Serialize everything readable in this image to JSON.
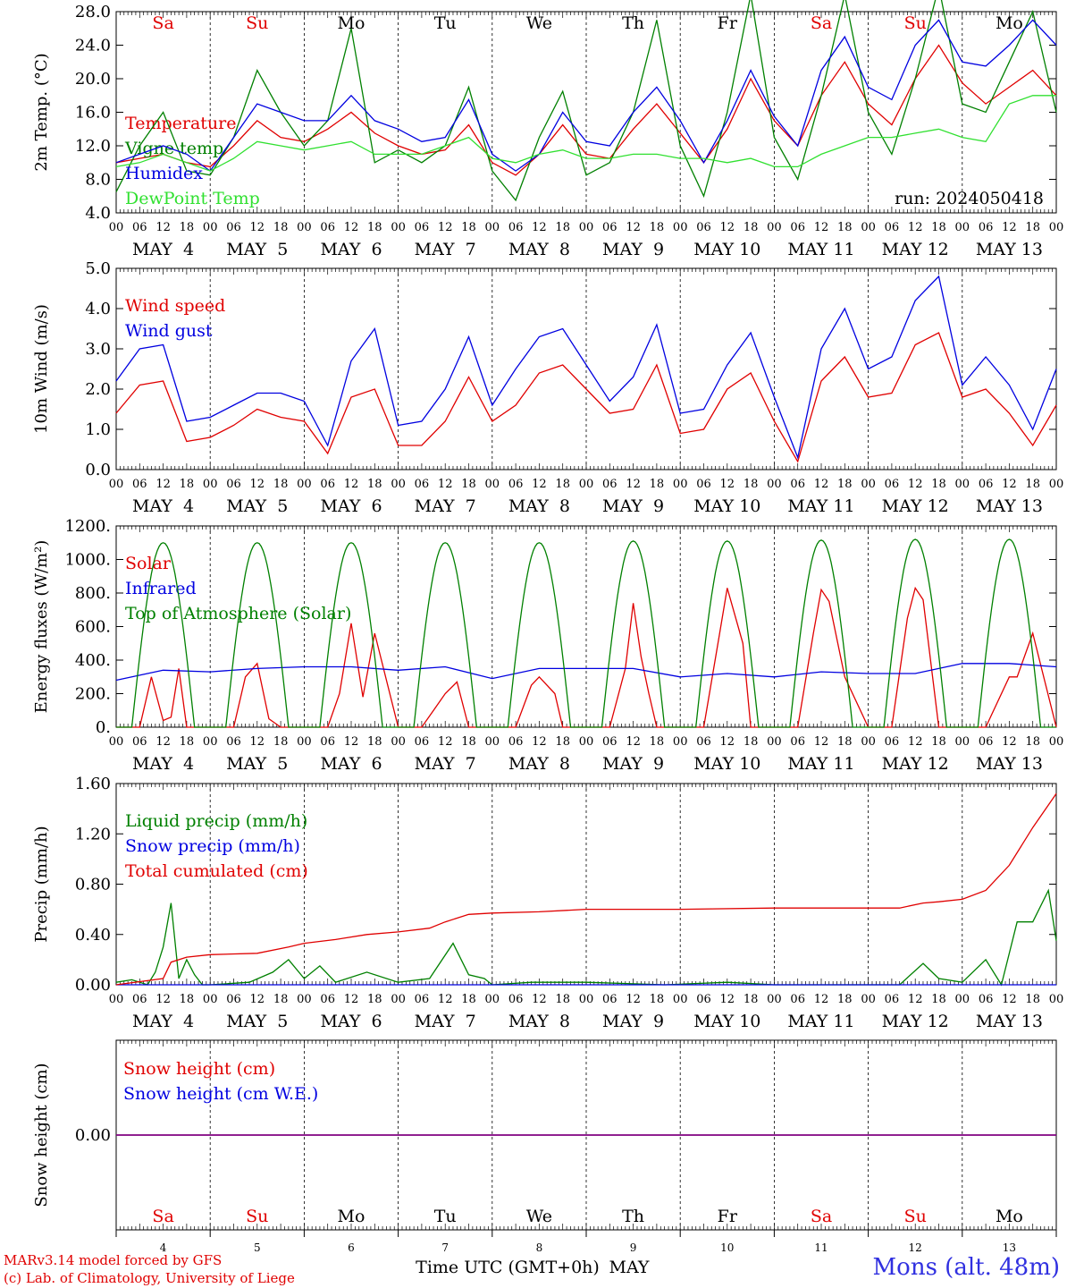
{
  "run_label": "run: 2024050418",
  "day_abbr": [
    "Sa",
    "Su",
    "Mo",
    "Tu",
    "We",
    "Th",
    "Fr",
    "Sa",
    "Su",
    "Mo"
  ],
  "day_colors": [
    "#e00000",
    "#e00000",
    "#000000",
    "#000000",
    "#000000",
    "#000000",
    "#000000",
    "#e00000",
    "#e00000",
    "#000000"
  ],
  "date_labels": [
    "MAY  4",
    "MAY  5",
    "MAY  6",
    "MAY  7",
    "MAY  8",
    "MAY  9",
    "MAY 10",
    "MAY 11",
    "MAY 12",
    "MAY 13"
  ],
  "hour_labels": [
    "00",
    "06",
    "12",
    "18"
  ],
  "bottom_day_numbers": [
    "4",
    "5",
    "6",
    "7",
    "8",
    "9",
    "10",
    "11",
    "12",
    "13"
  ],
  "x_axis_title": "Time UTC (GMT+0h)",
  "month_label": "MAY",
  "credits": [
    "MARv3.14 model forced by GFS",
    "(c) Lab. of Climatology, University of Liege"
  ],
  "station": "Mons (alt. 48m)",
  "chart_data": [
    {
      "type": "line",
      "ylabel": "2m Temp. (°C)",
      "ylim": [
        4,
        28
      ],
      "yticks": [
        "4.0",
        "8.0",
        "12.0",
        "16.0",
        "20.0",
        "24.0",
        "28.0"
      ],
      "x_unit": "hours since 2024-05-04 00 UTC",
      "series": [
        {
          "name": "Temperature",
          "color": "#e00000",
          "x": [
            0,
            6,
            12,
            18,
            24,
            30,
            36,
            42,
            48,
            54,
            60,
            66,
            72,
            78,
            84,
            90,
            96,
            102,
            108,
            114,
            120,
            126,
            132,
            138,
            144,
            150,
            156,
            162,
            168,
            174,
            180,
            186,
            192,
            198,
            204,
            210,
            216,
            222,
            228,
            234,
            240
          ],
          "y": [
            10,
            10.5,
            11,
            10,
            9.5,
            12,
            15,
            13,
            12.5,
            14,
            16,
            13.5,
            12,
            11,
            11.5,
            14.5,
            10,
            8.5,
            11,
            14.5,
            11,
            10.5,
            14,
            17,
            13.5,
            10,
            14,
            20,
            15,
            12,
            18,
            22,
            17,
            14.5,
            20,
            24,
            19.5,
            17,
            19,
            21,
            18
          ]
        },
        {
          "name": "Vigne temp",
          "color": "#008000",
          "x": [
            0,
            6,
            12,
            18,
            24,
            30,
            36,
            42,
            48,
            54,
            60,
            66,
            72,
            78,
            84,
            90,
            96,
            102,
            108,
            114,
            120,
            126,
            132,
            138,
            144,
            150,
            156,
            162,
            168,
            174,
            180,
            186,
            192,
            198,
            204,
            210,
            216,
            222,
            228,
            234,
            240
          ],
          "y": [
            6.5,
            12,
            16,
            9,
            8.5,
            13,
            21,
            16,
            12,
            15,
            26,
            10,
            11.5,
            10,
            12,
            19,
            9,
            5.5,
            13,
            18.5,
            8.5,
            10,
            16,
            27,
            12,
            6,
            16,
            30,
            13,
            8,
            18,
            30,
            16,
            11,
            20,
            31,
            17,
            16,
            22,
            28,
            16
          ]
        },
        {
          "name": "Humidex",
          "color": "#0000e0",
          "x": [
            0,
            6,
            12,
            18,
            24,
            30,
            36,
            42,
            48,
            54,
            60,
            66,
            72,
            78,
            84,
            90,
            96,
            102,
            108,
            114,
            120,
            126,
            132,
            138,
            144,
            150,
            156,
            162,
            168,
            174,
            180,
            186,
            192,
            198,
            204,
            210,
            216,
            222,
            228,
            234,
            240
          ],
          "y": [
            10,
            11,
            12,
            11,
            9,
            13,
            17,
            16,
            15,
            15,
            18,
            15,
            14,
            12.5,
            13,
            17.5,
            11,
            9,
            11,
            16,
            12.5,
            12,
            16,
            19,
            15,
            10,
            15,
            21,
            15.5,
            12,
            21,
            25,
            19,
            17.5,
            24,
            27,
            22,
            21.5,
            24,
            27,
            24
          ]
        },
        {
          "name": "DewPoint Temp",
          "color": "#30e030",
          "x": [
            0,
            6,
            12,
            18,
            24,
            30,
            36,
            42,
            48,
            54,
            60,
            66,
            72,
            78,
            84,
            90,
            96,
            102,
            108,
            114,
            120,
            126,
            132,
            138,
            144,
            150,
            156,
            162,
            168,
            174,
            180,
            186,
            192,
            198,
            204,
            210,
            216,
            222,
            228,
            234,
            240
          ],
          "y": [
            9.5,
            10,
            11,
            10,
            9,
            10.5,
            12.5,
            12,
            11.5,
            12,
            12.5,
            11,
            11,
            11,
            12,
            13,
            10.5,
            10,
            11,
            11.5,
            10.5,
            10.5,
            11,
            11,
            10.5,
            10.5,
            10,
            10.5,
            9.5,
            9.5,
            11,
            12,
            13,
            13,
            13.5,
            14,
            13,
            12.5,
            17,
            18,
            18
          ]
        }
      ]
    },
    {
      "type": "line",
      "ylabel": "10m Wind (m/s)",
      "ylim": [
        0,
        5
      ],
      "yticks": [
        "0.0",
        "1.0",
        "2.0",
        "3.0",
        "4.0",
        "5.0"
      ],
      "x_unit": "hours since 2024-05-04 00 UTC",
      "series": [
        {
          "name": "Wind speed",
          "color": "#e00000",
          "x": [
            0,
            6,
            12,
            18,
            24,
            30,
            36,
            42,
            48,
            54,
            60,
            66,
            72,
            78,
            84,
            90,
            96,
            102,
            108,
            114,
            120,
            126,
            132,
            138,
            144,
            150,
            156,
            162,
            168,
            174,
            180,
            186,
            192,
            198,
            204,
            210,
            216,
            222,
            228,
            234,
            240
          ],
          "y": [
            1.4,
            2.1,
            2.2,
            0.7,
            0.8,
            1.1,
            1.5,
            1.3,
            1.2,
            0.4,
            1.8,
            2.0,
            0.6,
            0.6,
            1.2,
            2.3,
            1.2,
            1.6,
            2.4,
            2.6,
            2.0,
            1.4,
            1.5,
            2.6,
            0.9,
            1.0,
            2.0,
            2.4,
            1.2,
            0.2,
            2.2,
            2.8,
            1.8,
            1.9,
            3.1,
            3.4,
            1.8,
            2.0,
            1.4,
            0.6,
            1.6
          ]
        },
        {
          "name": "Wind gust",
          "color": "#0000e0",
          "x": [
            0,
            6,
            12,
            18,
            24,
            30,
            36,
            42,
            48,
            54,
            60,
            66,
            72,
            78,
            84,
            90,
            96,
            102,
            108,
            114,
            120,
            126,
            132,
            138,
            144,
            150,
            156,
            162,
            168,
            174,
            180,
            186,
            192,
            198,
            204,
            210,
            216,
            222,
            228,
            234,
            240
          ],
          "y": [
            2.2,
            3.0,
            3.1,
            1.2,
            1.3,
            1.6,
            1.9,
            1.9,
            1.7,
            0.6,
            2.7,
            3.5,
            1.1,
            1.2,
            2.0,
            3.3,
            1.6,
            2.5,
            3.3,
            3.5,
            2.6,
            1.7,
            2.3,
            3.6,
            1.4,
            1.5,
            2.6,
            3.4,
            1.8,
            0.3,
            3.0,
            4.0,
            2.5,
            2.8,
            4.2,
            4.8,
            2.1,
            2.8,
            2.1,
            1.0,
            2.5
          ]
        }
      ]
    },
    {
      "type": "line",
      "ylabel": "Energy fluxes (W/m²)",
      "ylim": [
        0,
        1200
      ],
      "yticks": [
        "0.",
        "200.",
        "400.",
        "600.",
        "800.",
        "1000.",
        "1200."
      ],
      "x_unit": "hours since 2024-05-04 00 UTC",
      "series": [
        {
          "name": "Solar",
          "color": "#e00000",
          "x": [
            0,
            6,
            9,
            12,
            14,
            16,
            18,
            24,
            30,
            33,
            36,
            39,
            42,
            48,
            54,
            57,
            60,
            63,
            66,
            72,
            78,
            81,
            84,
            87,
            90,
            96,
            102,
            106,
            108,
            112,
            114,
            120,
            126,
            130,
            132,
            134,
            136,
            138,
            144,
            150,
            154,
            156,
            160,
            162,
            168,
            174,
            178,
            180,
            182,
            186,
            192,
            198,
            202,
            204,
            206,
            210,
            216,
            222,
            228,
            230,
            234,
            240
          ],
          "y": [
            0,
            0,
            300,
            40,
            60,
            350,
            0,
            0,
            0,
            300,
            380,
            50,
            0,
            0,
            0,
            200,
            620,
            180,
            560,
            0,
            0,
            100,
            200,
            270,
            0,
            0,
            0,
            250,
            300,
            200,
            0,
            0,
            0,
            350,
            740,
            420,
            200,
            0,
            0,
            0,
            550,
            830,
            500,
            0,
            0,
            0,
            560,
            820,
            750,
            300,
            0,
            0,
            650,
            830,
            760,
            0,
            0,
            0,
            300,
            300,
            560,
            0
          ]
        },
        {
          "name": "Infrared",
          "color": "#0000e0",
          "x": [
            0,
            12,
            24,
            36,
            48,
            60,
            72,
            84,
            96,
            108,
            120,
            132,
            144,
            156,
            168,
            180,
            192,
            204,
            216,
            228,
            240
          ],
          "y": [
            280,
            340,
            330,
            350,
            360,
            360,
            340,
            360,
            290,
            350,
            350,
            350,
            300,
            320,
            300,
            330,
            320,
            320,
            380,
            380,
            360
          ]
        },
        {
          "name": "Top of Atmosphere (Solar)",
          "color": "#008000",
          "x_cycle": "daily",
          "sunrise_hour": 4,
          "noon_hour": 12,
          "sunset_hour": 20,
          "peak": [
            1100,
            1100,
            1100,
            1100,
            1100,
            1110,
            1110,
            1115,
            1120,
            1120
          ]
        }
      ]
    },
    {
      "type": "line",
      "ylabel": "Precip (mm/h)",
      "ylim": [
        0,
        1.6
      ],
      "yticks": [
        "0.00",
        "0.40",
        "0.80",
        "1.20",
        "1.60"
      ],
      "x_unit": "hours since 2024-05-04 00 UTC",
      "series": [
        {
          "name": "Liquid precip (mm/h)",
          "color": "#008000",
          "x": [
            0,
            4,
            8,
            10,
            12,
            14,
            16,
            18,
            20,
            22,
            24,
            34,
            40,
            44,
            48,
            52,
            56,
            64,
            72,
            80,
            86,
            90,
            94,
            96,
            106,
            120,
            140,
            156,
            168,
            200,
            206,
            210,
            216,
            222,
            226,
            230,
            234,
            238,
            240
          ],
          "y": [
            0.02,
            0.04,
            0.0,
            0.1,
            0.3,
            0.65,
            0.05,
            0.2,
            0.08,
            0.0,
            0.0,
            0.02,
            0.1,
            0.2,
            0.05,
            0.15,
            0.02,
            0.1,
            0.02,
            0.05,
            0.33,
            0.08,
            0.05,
            0.0,
            0.02,
            0.02,
            0.0,
            0.02,
            0.0,
            0.0,
            0.17,
            0.05,
            0.02,
            0.2,
            0.0,
            0.5,
            0.5,
            0.75,
            0.35
          ]
        },
        {
          "name": "Snow precip (mm/h)",
          "color": "#0000e0",
          "x": [
            0,
            240
          ],
          "y": [
            0,
            0
          ]
        },
        {
          "name": "Total cumulated (cm)",
          "color": "#e00000",
          "x": [
            0,
            12,
            14,
            18,
            24,
            36,
            44,
            48,
            56,
            64,
            72,
            80,
            84,
            90,
            96,
            108,
            120,
            144,
            168,
            192,
            200,
            206,
            210,
            216,
            222,
            228,
            234,
            240
          ],
          "y": [
            0.0,
            0.05,
            0.18,
            0.22,
            0.24,
            0.25,
            0.3,
            0.33,
            0.36,
            0.4,
            0.42,
            0.45,
            0.5,
            0.56,
            0.57,
            0.58,
            0.6,
            0.6,
            0.61,
            0.61,
            0.61,
            0.65,
            0.66,
            0.68,
            0.75,
            0.95,
            1.25,
            1.52
          ]
        }
      ]
    },
    {
      "type": "line",
      "ylabel": "Snow height (cm)",
      "yticks": [
        "0.00"
      ],
      "x_unit": "hours since 2024-05-04 00 UTC",
      "series": [
        {
          "name": "Snow height (cm)",
          "color": "#e00000",
          "x": [
            0,
            240
          ],
          "y": [
            0,
            0
          ]
        },
        {
          "name": "Snow height (cm W.E.)",
          "color": "#0000e0",
          "x": [
            0,
            240
          ],
          "y": [
            0,
            0
          ]
        }
      ]
    }
  ]
}
